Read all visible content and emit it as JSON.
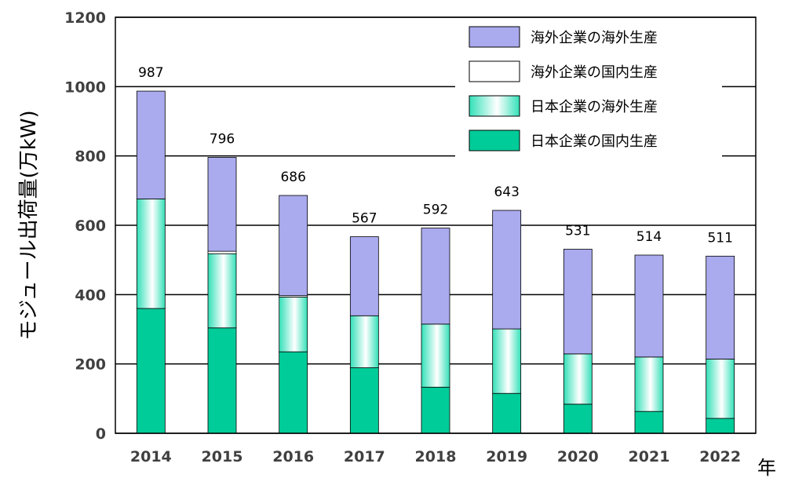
{
  "chart_data": {
    "type": "bar",
    "stacked": true,
    "categories": [
      "2014",
      "2015",
      "2016",
      "2017",
      "2018",
      "2019",
      "2020",
      "2021",
      "2022"
    ],
    "series": [
      {
        "name": "日本企業の国内生産",
        "values": [
          360,
          304,
          235,
          189,
          133,
          115,
          84,
          63,
          43
        ],
        "color": "#00cc99",
        "gradient": false
      },
      {
        "name": "日本企業の海外生産",
        "values": [
          316,
          214,
          158,
          150,
          182,
          186,
          145,
          157,
          171
        ],
        "color": "#33e0b8",
        "gradient": true
      },
      {
        "name": "海外企業の国内生産",
        "values": [
          0,
          7,
          4,
          0,
          0,
          0,
          0,
          0,
          0
        ],
        "color": "#ffffff",
        "gradient": false
      },
      {
        "name": "海外企業の海外生産",
        "values": [
          311,
          271,
          289,
          228,
          277,
          342,
          302,
          294,
          297
        ],
        "color": "#aaaaee",
        "gradient": false
      }
    ],
    "totals": [
      "987",
      "796",
      "686",
      "567",
      "592",
      "643",
      "531",
      "514",
      "511"
    ],
    "ylabel": "モジュール出荷量(万kW)",
    "xlabel": "年",
    "ylim": [
      0,
      1200
    ],
    "yticks": [
      "0",
      "200",
      "400",
      "600",
      "800",
      "1000",
      "1200"
    ],
    "grid": true,
    "legend_position": "top-right",
    "legend_order": [
      3,
      2,
      1,
      0
    ]
  }
}
